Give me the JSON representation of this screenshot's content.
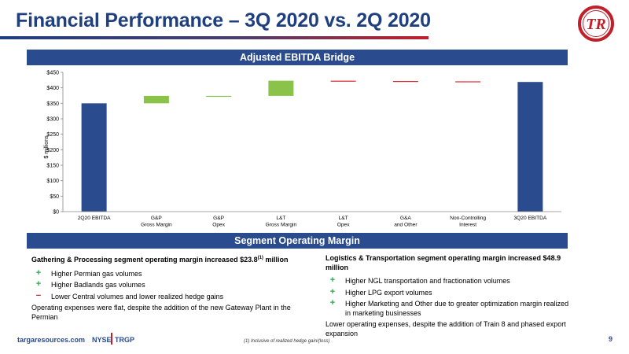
{
  "slide": {
    "title": "Financial Performance – 3Q 2020 vs. 2Q 2020",
    "logo_text": "TR"
  },
  "sections": {
    "ebitda_bridge": "Adjusted EBITDA Bridge",
    "segment_margin": "Segment Operating Margin"
  },
  "chart_data": {
    "type": "bar",
    "subtype": "waterfall",
    "title": "",
    "xlabel": "",
    "ylabel": "$ millions",
    "ylim": [
      0,
      450
    ],
    "yticks": [
      0,
      50,
      100,
      150,
      200,
      250,
      300,
      350,
      400,
      450
    ],
    "ytick_labels": [
      "$0",
      "$50",
      "$100",
      "$150",
      "$200",
      "$250",
      "$300",
      "$350",
      "$400",
      "$450"
    ],
    "grid": false,
    "categories": [
      [
        "2Q20 EBITDA"
      ],
      [
        "G&P",
        "Gross Margin"
      ],
      [
        "G&P",
        "Opex"
      ],
      [
        "L&T",
        "Gross Margin"
      ],
      [
        "L&T",
        "Opex"
      ],
      [
        "G&A",
        "and Other"
      ],
      [
        "Non-Controlling",
        "Interest"
      ],
      [
        "3Q20 EBITDA"
      ]
    ],
    "bars": [
      {
        "kind": "total",
        "start": 0,
        "end": 350
      },
      {
        "kind": "delta",
        "start": 350,
        "end": 374
      },
      {
        "kind": "delta",
        "start": 374,
        "end": 374
      },
      {
        "kind": "delta",
        "start": 374,
        "end": 423
      },
      {
        "kind": "delta",
        "start": 423,
        "end": 422
      },
      {
        "kind": "delta",
        "start": 422,
        "end": 421
      },
      {
        "kind": "delta",
        "start": 421,
        "end": 419
      },
      {
        "kind": "total",
        "start": 0,
        "end": 419
      }
    ],
    "colors": {
      "total": "#2a4b8d",
      "increase": "#8bc34a",
      "decrease": "#d9282f"
    }
  },
  "segments": {
    "gp": {
      "heading": "Gathering & Processing segment operating margin increased $23.8",
      "heading_sup": "(1)",
      "heading_tail": " million",
      "bullets": [
        {
          "sign": "+",
          "text": "Higher Permian gas volumes"
        },
        {
          "sign": "+",
          "text": "Higher Badlands gas volumes"
        },
        {
          "sign": "−",
          "text": "Lower Central volumes and lower realized hedge gains"
        }
      ],
      "note": "Operating expenses were flat, despite the addition of the new Gateway Plant in the Permian"
    },
    "lt": {
      "heading": "Logistics & Transportation segment operating margin increased $48.9 million",
      "bullets": [
        {
          "sign": "+",
          "text": "Higher NGL transportation and fractionation volumes"
        },
        {
          "sign": "+",
          "text": "Higher LPG export volumes"
        },
        {
          "sign": "+",
          "text": "Higher Marketing and Other due to greater optimization margin realized in marketing businesses"
        }
      ],
      "note": "Lower operating expenses, despite the addition of Train 8 and phased export expansion"
    }
  },
  "footer": {
    "site": "targaresources.com",
    "exchange": "NYSE",
    "ticker": "TRGP",
    "footnote": "(1)     Inclusive of realized hedge gain/(loss)",
    "page": "9"
  }
}
